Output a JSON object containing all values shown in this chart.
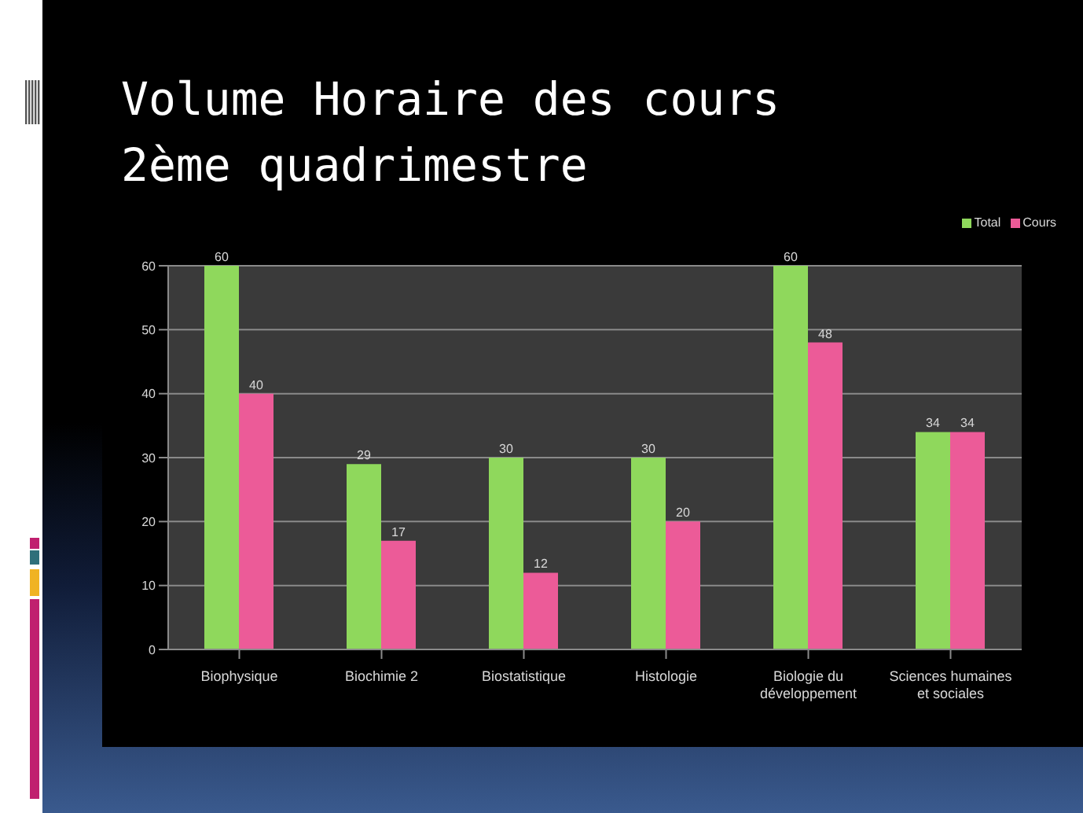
{
  "chart_data": {
    "type": "bar",
    "title": "Volume Horaire des cours 2ème quadrimestre",
    "categories": [
      "Biophysique",
      "Biochimie 2",
      "Biostatistique",
      "Histologie",
      "Biologie du développement",
      "Sciences humaines et sociales"
    ],
    "series": [
      {
        "name": "Total",
        "color": "#8fd85c",
        "values": [
          60,
          29,
          30,
          30,
          60,
          34
        ]
      },
      {
        "name": "Cours",
        "color": "#ec5b98",
        "values": [
          40,
          17,
          12,
          20,
          48,
          34
        ]
      }
    ],
    "ylim": [
      0,
      60
    ],
    "yticks": [
      0,
      10,
      20,
      30,
      40,
      50,
      60
    ],
    "grid": "y",
    "legend": "top right",
    "data_labels": true
  }
}
